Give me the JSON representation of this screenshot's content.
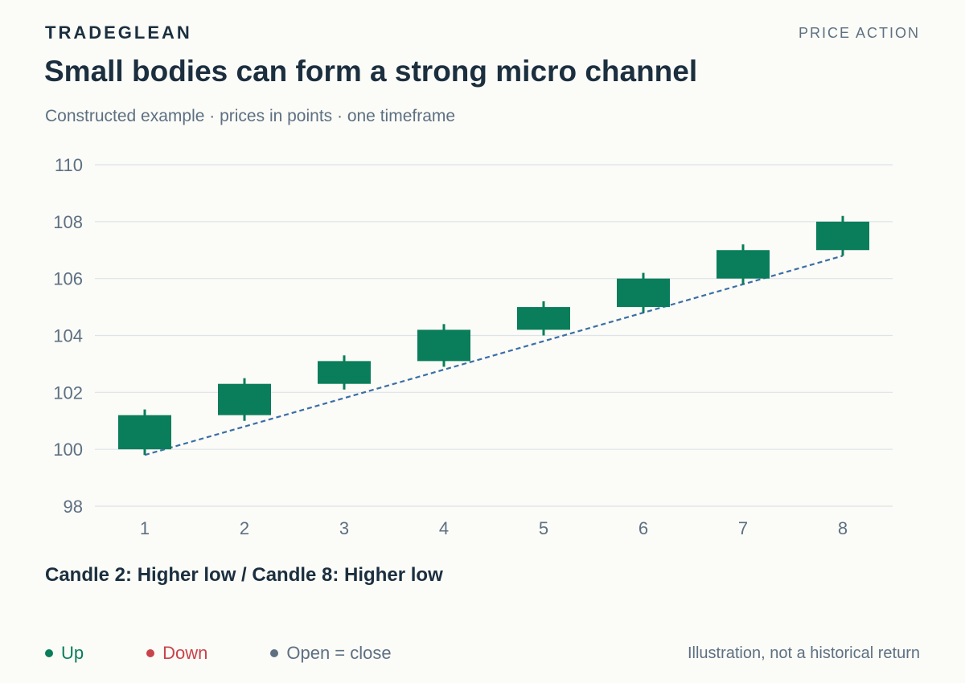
{
  "header": {
    "brand": "TRADEGLEAN",
    "section": "PRICE ACTION",
    "title": "Small bodies can form a strong micro channel",
    "subtitle": "Constructed example · prices in points · one timeframe"
  },
  "annotation": "Candle 2: Higher low / Candle 8: Higher low",
  "legend": [
    {
      "label": "Up",
      "color": "#0a7d5a"
    },
    {
      "label": "Down",
      "color": "#c9434a"
    },
    {
      "label": "Open = close",
      "color": "#5d7082"
    }
  ],
  "footnote": "Illustration, not a historical return",
  "chart_data": {
    "type": "candlestick",
    "categories": [
      "1",
      "2",
      "3",
      "4",
      "5",
      "6",
      "7",
      "8"
    ],
    "ylim": [
      98,
      110
    ],
    "yticks": [
      98,
      100,
      102,
      104,
      106,
      108,
      110
    ],
    "grid": true,
    "candles": [
      {
        "x": "1",
        "open": 100.0,
        "high": 101.4,
        "low": 99.8,
        "close": 101.2
      },
      {
        "x": "2",
        "open": 101.2,
        "high": 102.5,
        "low": 101.0,
        "close": 102.3
      },
      {
        "x": "3",
        "open": 102.3,
        "high": 103.3,
        "low": 102.1,
        "close": 103.1
      },
      {
        "x": "4",
        "open": 103.1,
        "high": 104.4,
        "low": 102.9,
        "close": 104.2
      },
      {
        "x": "5",
        "open": 104.2,
        "high": 105.2,
        "low": 104.0,
        "close": 105.0
      },
      {
        "x": "6",
        "open": 105.0,
        "high": 106.2,
        "low": 104.8,
        "close": 106.0
      },
      {
        "x": "7",
        "open": 106.0,
        "high": 107.2,
        "low": 105.8,
        "close": 107.0
      },
      {
        "x": "8",
        "open": 107.0,
        "high": 108.2,
        "low": 106.8,
        "close": 108.0
      }
    ],
    "trendline": {
      "from": {
        "x": "1",
        "y": 99.8
      },
      "to": {
        "x": "8",
        "y": 106.8
      },
      "style": "dashed",
      "color": "#3b6ea5"
    },
    "colors": {
      "up": "#0a7d5a",
      "down": "#c9434a",
      "flat": "#5d7082",
      "grid": "#dde3e8",
      "tick": "#5d7082"
    }
  }
}
